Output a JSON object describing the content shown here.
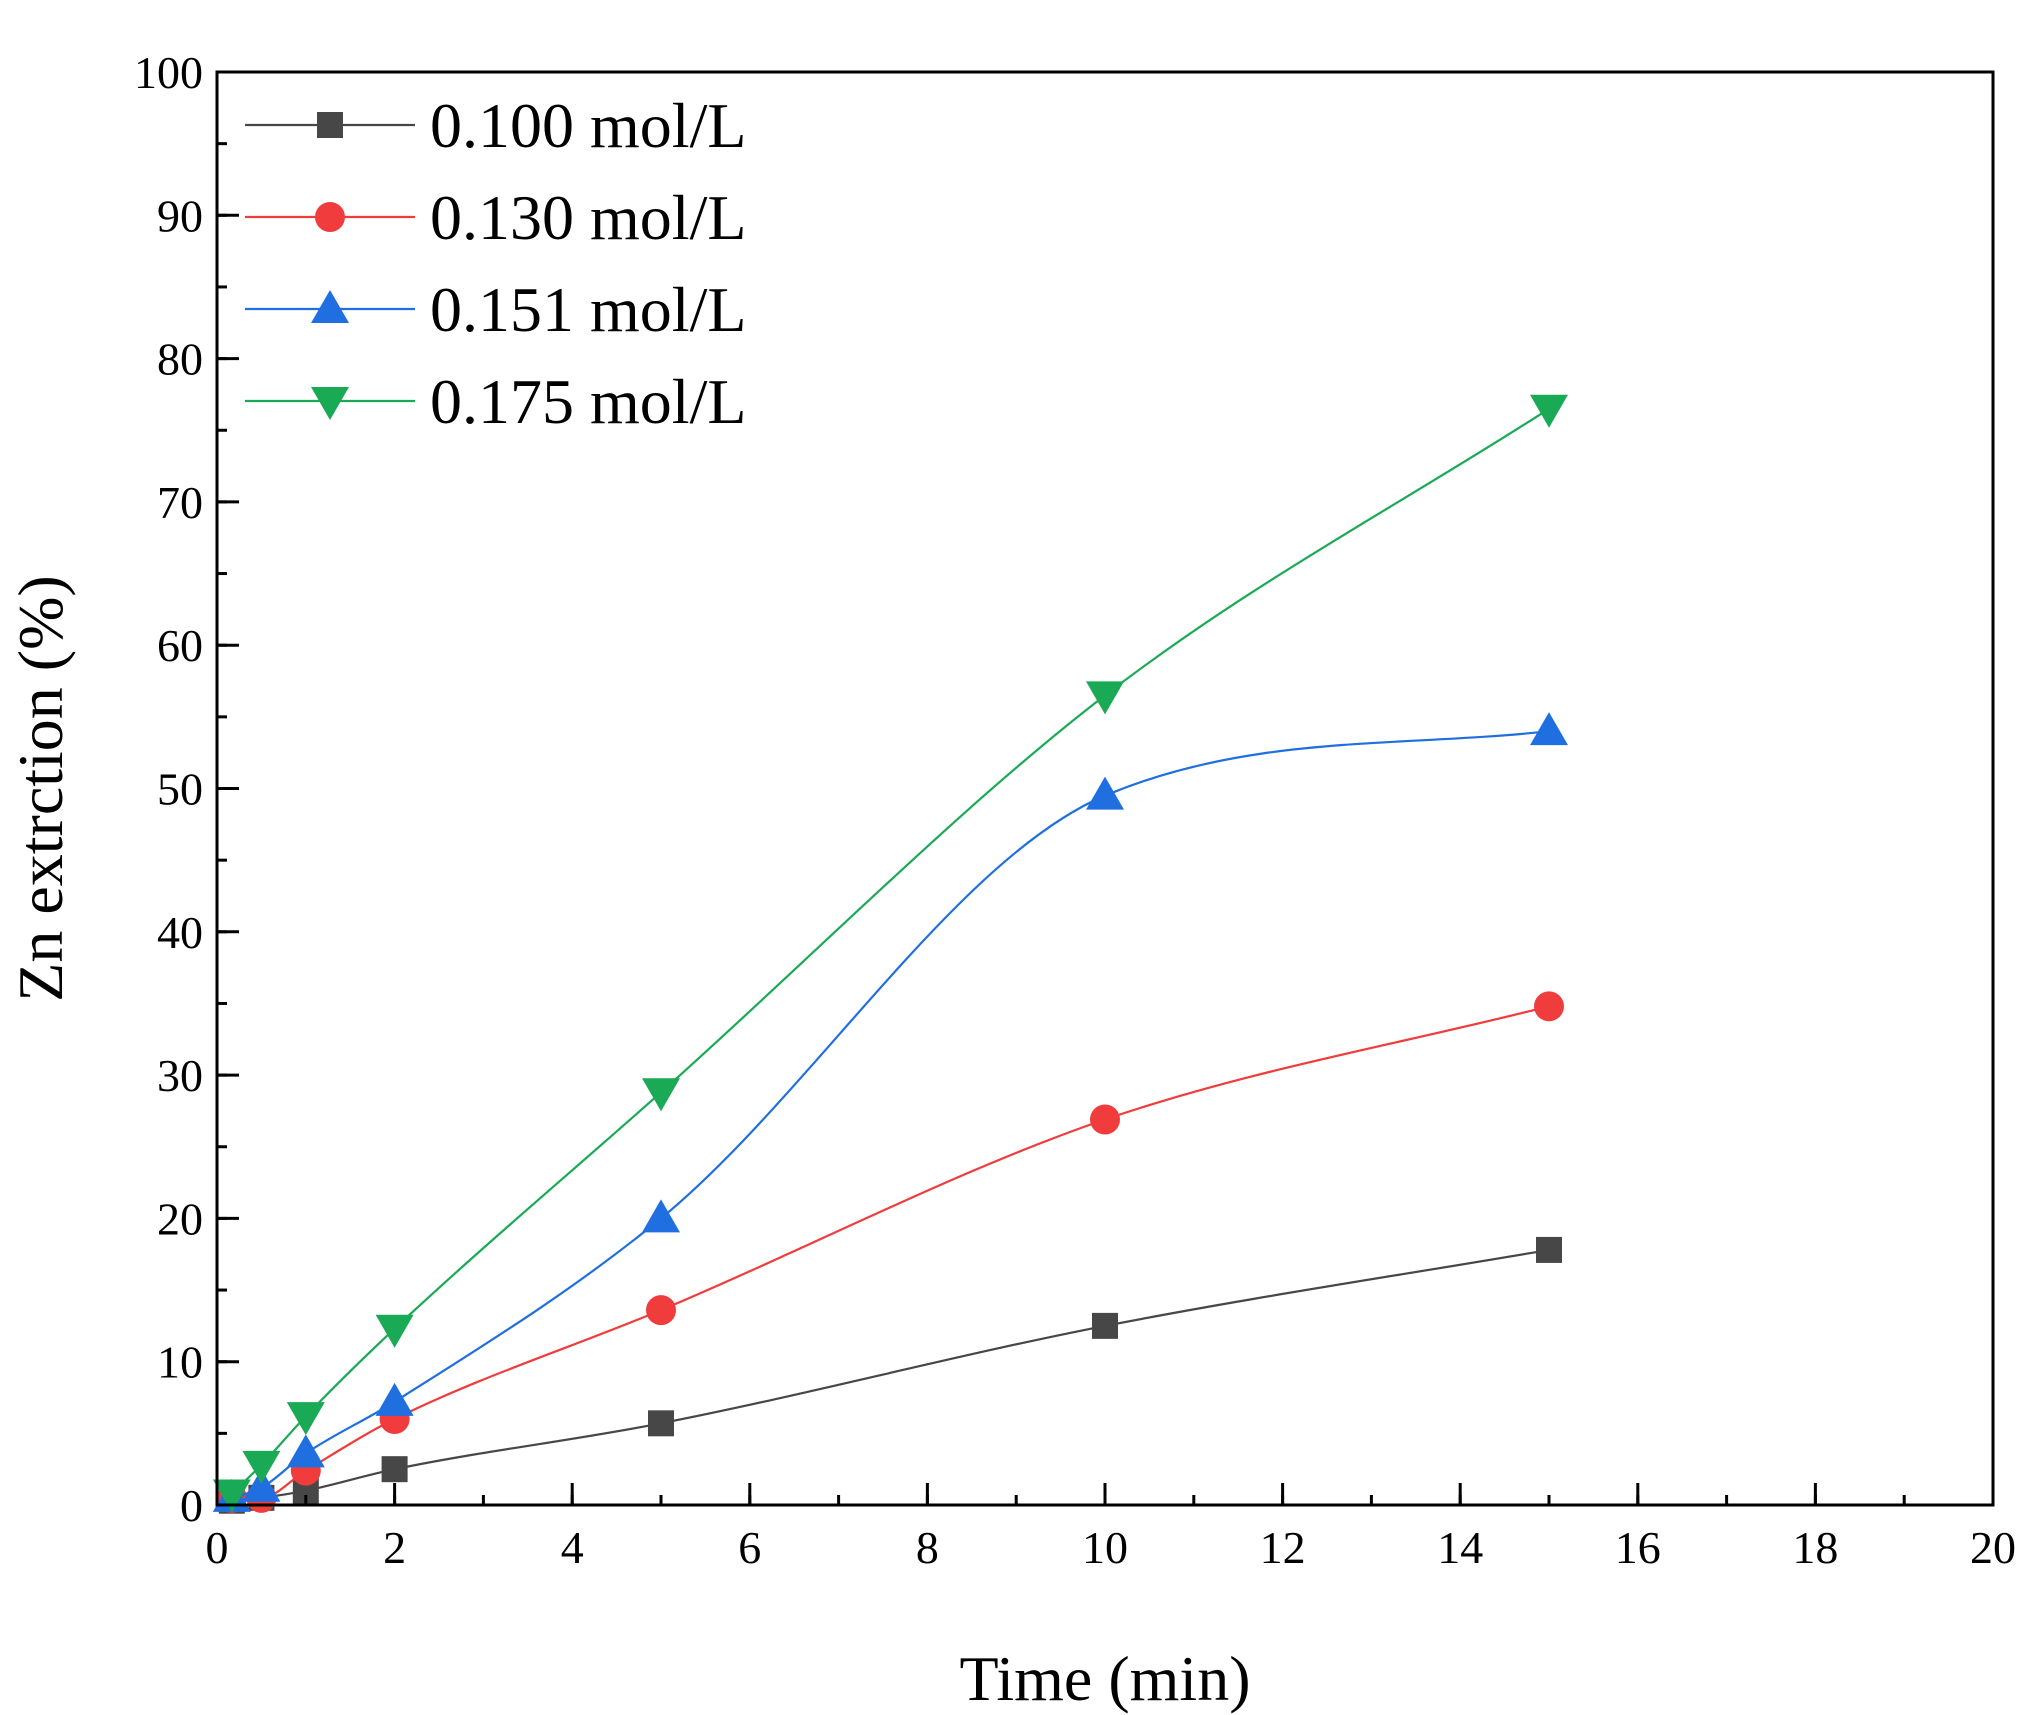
{
  "chart_data": {
    "type": "line",
    "title": "",
    "xlabel": "Time (min)",
    "ylabel": "Zn extrction (%)",
    "xlim": [
      0,
      20
    ],
    "ylim": [
      0,
      100
    ],
    "xticks": [
      "0",
      "2",
      "4",
      "6",
      "8",
      "10",
      "12",
      "14",
      "16",
      "18",
      "20"
    ],
    "yticks": [
      "0",
      "10",
      "20",
      "30",
      "40",
      "50",
      "60",
      "70",
      "80",
      "90",
      "100"
    ],
    "grid": false,
    "legend_position": "top-left",
    "series": [
      {
        "name": "0.100 mol/L",
        "color": "#474747",
        "marker": "square",
        "x": [
          0.167,
          0.5,
          1,
          2,
          5,
          10,
          15
        ],
        "y": [
          0.3,
          0.5,
          1.0,
          2.5,
          5.7,
          12.5,
          17.8
        ]
      },
      {
        "name": "0.130 mol/L",
        "color": "#f03c3c",
        "marker": "circle",
        "x": [
          0.167,
          0.5,
          1,
          2,
          5,
          10,
          15
        ],
        "y": [
          0.5,
          0.5,
          2.4,
          6.0,
          13.6,
          26.9,
          34.8
        ]
      },
      {
        "name": "0.151 mol/L",
        "color": "#1f6fe0",
        "marker": "triangle-up",
        "x": [
          0.167,
          0.5,
          1,
          2,
          5,
          10,
          15
        ],
        "y": [
          0.5,
          1.2,
          3.6,
          7.2,
          20.0,
          49.5,
          54.0
        ]
      },
      {
        "name": "0.175 mol/L",
        "color": "#1aaa55",
        "marker": "triangle-down",
        "x": [
          0.167,
          0.5,
          1,
          2,
          5,
          10,
          15
        ],
        "y": [
          0.8,
          2.8,
          6.2,
          12.3,
          28.8,
          56.5,
          76.5
        ]
      }
    ]
  }
}
